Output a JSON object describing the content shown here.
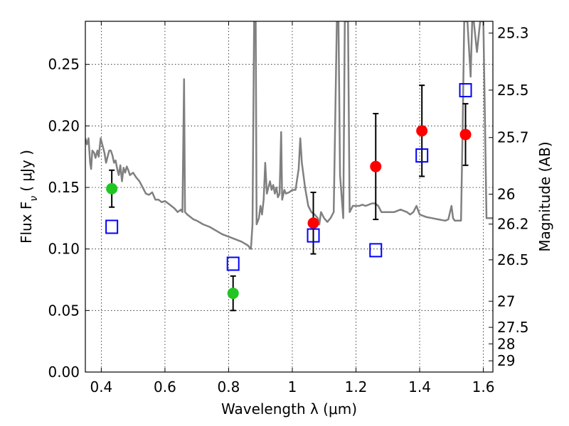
{
  "chart_data": {
    "type": "scatter",
    "xlabel": "Wavelength  λ (μm)",
    "ylabel": "Flux  F",
    "ylabel_sub": "ν",
    "ylabel_unit": "( μJy )",
    "y2label": "Magnitude (AB)",
    "xlim": [
      0.35,
      1.63
    ],
    "ylim": [
      0.0,
      0.285
    ],
    "x_ticks": [
      {
        "value": 0.4,
        "label": "0.4"
      },
      {
        "value": 0.6,
        "label": "0.6"
      },
      {
        "value": 0.8,
        "label": "0.8"
      },
      {
        "value": 1.0,
        "label": "1"
      },
      {
        "value": 1.2,
        "label": "1.2"
      },
      {
        "value": 1.4,
        "label": "1.4"
      },
      {
        "value": 1.6,
        "label": "1.6"
      }
    ],
    "y_ticks": [
      {
        "value": 0.0,
        "label": "0.00"
      },
      {
        "value": 0.05,
        "label": "0.05"
      },
      {
        "value": 0.1,
        "label": "0.10"
      },
      {
        "value": 0.15,
        "label": "0.15"
      },
      {
        "value": 0.2,
        "label": "0.20"
      },
      {
        "value": 0.25,
        "label": "0.25"
      }
    ],
    "mag_ticks": [
      {
        "mag": 25.3,
        "label": "25.3"
      },
      {
        "mag": 25.5,
        "label": "25.5"
      },
      {
        "mag": 25.7,
        "label": "25.7"
      },
      {
        "mag": 26.0,
        "label": "26"
      },
      {
        "mag": 26.2,
        "label": "26.2"
      },
      {
        "mag": 26.5,
        "label": "26.5"
      },
      {
        "mag": 27.0,
        "label": "27"
      },
      {
        "mag": 27.5,
        "label": "27.5"
      },
      {
        "mag": 28.0,
        "label": "28"
      },
      {
        "mag": 29.0,
        "label": "29"
      }
    ],
    "grid": true,
    "series": [
      {
        "kind": "line",
        "color": "#808080",
        "points": [
          [
            0.35,
            0.19
          ],
          [
            0.355,
            0.185
          ],
          [
            0.36,
            0.19
          ],
          [
            0.365,
            0.17
          ],
          [
            0.368,
            0.165
          ],
          [
            0.372,
            0.18
          ],
          [
            0.378,
            0.178
          ],
          [
            0.382,
            0.174
          ],
          [
            0.388,
            0.18
          ],
          [
            0.392,
            0.175
          ],
          [
            0.398,
            0.19
          ],
          [
            0.402,
            0.186
          ],
          [
            0.41,
            0.178
          ],
          [
            0.415,
            0.17
          ],
          [
            0.42,
            0.175
          ],
          [
            0.425,
            0.18
          ],
          [
            0.43,
            0.18
          ],
          [
            0.435,
            0.176
          ],
          [
            0.44,
            0.17
          ],
          [
            0.445,
            0.172
          ],
          [
            0.45,
            0.165
          ],
          [
            0.455,
            0.16
          ],
          [
            0.46,
            0.168
          ],
          [
            0.465,
            0.155
          ],
          [
            0.47,
            0.166
          ],
          [
            0.475,
            0.162
          ],
          [
            0.48,
            0.167
          ],
          [
            0.485,
            0.164
          ],
          [
            0.49,
            0.16
          ],
          [
            0.5,
            0.162
          ],
          [
            0.51,
            0.158
          ],
          [
            0.52,
            0.155
          ],
          [
            0.53,
            0.15
          ],
          [
            0.54,
            0.145
          ],
          [
            0.55,
            0.144
          ],
          [
            0.56,
            0.146
          ],
          [
            0.57,
            0.14
          ],
          [
            0.58,
            0.14
          ],
          [
            0.59,
            0.138
          ],
          [
            0.6,
            0.139
          ],
          [
            0.61,
            0.137
          ],
          [
            0.62,
            0.135
          ],
          [
            0.63,
            0.133
          ],
          [
            0.64,
            0.13
          ],
          [
            0.65,
            0.132
          ],
          [
            0.655,
            0.13
          ],
          [
            0.66,
            0.238
          ],
          [
            0.663,
            0.13
          ],
          [
            0.67,
            0.128
          ],
          [
            0.68,
            0.126
          ],
          [
            0.69,
            0.124
          ],
          [
            0.7,
            0.123
          ],
          [
            0.72,
            0.12
          ],
          [
            0.74,
            0.118
          ],
          [
            0.76,
            0.115
          ],
          [
            0.78,
            0.112
          ],
          [
            0.8,
            0.11
          ],
          [
            0.82,
            0.108
          ],
          [
            0.84,
            0.106
          ],
          [
            0.86,
            0.103
          ],
          [
            0.87,
            0.1
          ],
          [
            0.875,
            0.12
          ],
          [
            0.88,
            0.285
          ],
          [
            0.885,
            0.285
          ],
          [
            0.888,
            0.12
          ],
          [
            0.895,
            0.125
          ],
          [
            0.9,
            0.135
          ],
          [
            0.905,
            0.128
          ],
          [
            0.91,
            0.14
          ],
          [
            0.915,
            0.17
          ],
          [
            0.92,
            0.145
          ],
          [
            0.925,
            0.15
          ],
          [
            0.93,
            0.155
          ],
          [
            0.935,
            0.148
          ],
          [
            0.94,
            0.152
          ],
          [
            0.945,
            0.145
          ],
          [
            0.95,
            0.15
          ],
          [
            0.955,
            0.142
          ],
          [
            0.96,
            0.145
          ],
          [
            0.965,
            0.195
          ],
          [
            0.968,
            0.14
          ],
          [
            0.975,
            0.148
          ],
          [
            0.98,
            0.145
          ],
          [
            0.99,
            0.146
          ],
          [
            1.0,
            0.148
          ],
          [
            1.01,
            0.148
          ],
          [
            1.02,
            0.165
          ],
          [
            1.025,
            0.19
          ],
          [
            1.03,
            0.17
          ],
          [
            1.04,
            0.15
          ],
          [
            1.05,
            0.135
          ],
          [
            1.06,
            0.13
          ],
          [
            1.07,
            0.128
          ],
          [
            1.08,
            0.125
          ],
          [
            1.085,
            0.12
          ],
          [
            1.09,
            0.13
          ],
          [
            1.1,
            0.125
          ],
          [
            1.11,
            0.122
          ],
          [
            1.12,
            0.125
          ],
          [
            1.13,
            0.13
          ],
          [
            1.14,
            0.285
          ],
          [
            1.145,
            0.285
          ],
          [
            1.15,
            0.16
          ],
          [
            1.16,
            0.125
          ],
          [
            1.165,
            0.285
          ],
          [
            1.175,
            0.285
          ],
          [
            1.18,
            0.13
          ],
          [
            1.19,
            0.135
          ],
          [
            1.2,
            0.135
          ],
          [
            1.21,
            0.135
          ],
          [
            1.22,
            0.136
          ],
          [
            1.23,
            0.135
          ],
          [
            1.24,
            0.136
          ],
          [
            1.25,
            0.137
          ],
          [
            1.26,
            0.137
          ],
          [
            1.27,
            0.135
          ],
          [
            1.28,
            0.13
          ],
          [
            1.3,
            0.13
          ],
          [
            1.32,
            0.13
          ],
          [
            1.34,
            0.132
          ],
          [
            1.36,
            0.13
          ],
          [
            1.37,
            0.128
          ],
          [
            1.38,
            0.13
          ],
          [
            1.39,
            0.135
          ],
          [
            1.4,
            0.128
          ],
          [
            1.42,
            0.126
          ],
          [
            1.44,
            0.125
          ],
          [
            1.46,
            0.124
          ],
          [
            1.48,
            0.123
          ],
          [
            1.49,
            0.124
          ],
          [
            1.5,
            0.135
          ],
          [
            1.505,
            0.125
          ],
          [
            1.51,
            0.123
          ],
          [
            1.52,
            0.123
          ],
          [
            1.53,
            0.123
          ],
          [
            1.535,
            0.2
          ],
          [
            1.54,
            0.285
          ],
          [
            1.55,
            0.285
          ],
          [
            1.56,
            0.24
          ],
          [
            1.565,
            0.285
          ],
          [
            1.57,
            0.285
          ],
          [
            1.58,
            0.26
          ],
          [
            1.59,
            0.285
          ],
          [
            1.6,
            0.285
          ],
          [
            1.61,
            0.125
          ],
          [
            1.63,
            0.125
          ]
        ]
      },
      {
        "kind": "markers",
        "marker": "circle",
        "color": "#22c522",
        "points": [
          {
            "x": 0.433,
            "y": 0.149,
            "yerr": 0.015
          },
          {
            "x": 0.814,
            "y": 0.064,
            "yerr": 0.014
          }
        ]
      },
      {
        "kind": "markers",
        "marker": "circle",
        "color": "#ff0000",
        "points": [
          {
            "x": 1.066,
            "y": 0.121,
            "yerr": 0.025
          },
          {
            "x": 1.262,
            "y": 0.167,
            "yerr": 0.043
          },
          {
            "x": 1.407,
            "y": 0.196,
            "yerr": 0.037
          },
          {
            "x": 1.544,
            "y": 0.193,
            "yerr": 0.025
          }
        ]
      },
      {
        "kind": "markers",
        "marker": "open-square",
        "color": "#0000ff",
        "points": [
          {
            "x": 0.433,
            "y": 0.118
          },
          {
            "x": 0.814,
            "y": 0.088
          },
          {
            "x": 1.066,
            "y": 0.111
          },
          {
            "x": 1.262,
            "y": 0.099
          },
          {
            "x": 1.407,
            "y": 0.176
          },
          {
            "x": 1.544,
            "y": 0.229
          }
        ]
      }
    ]
  }
}
